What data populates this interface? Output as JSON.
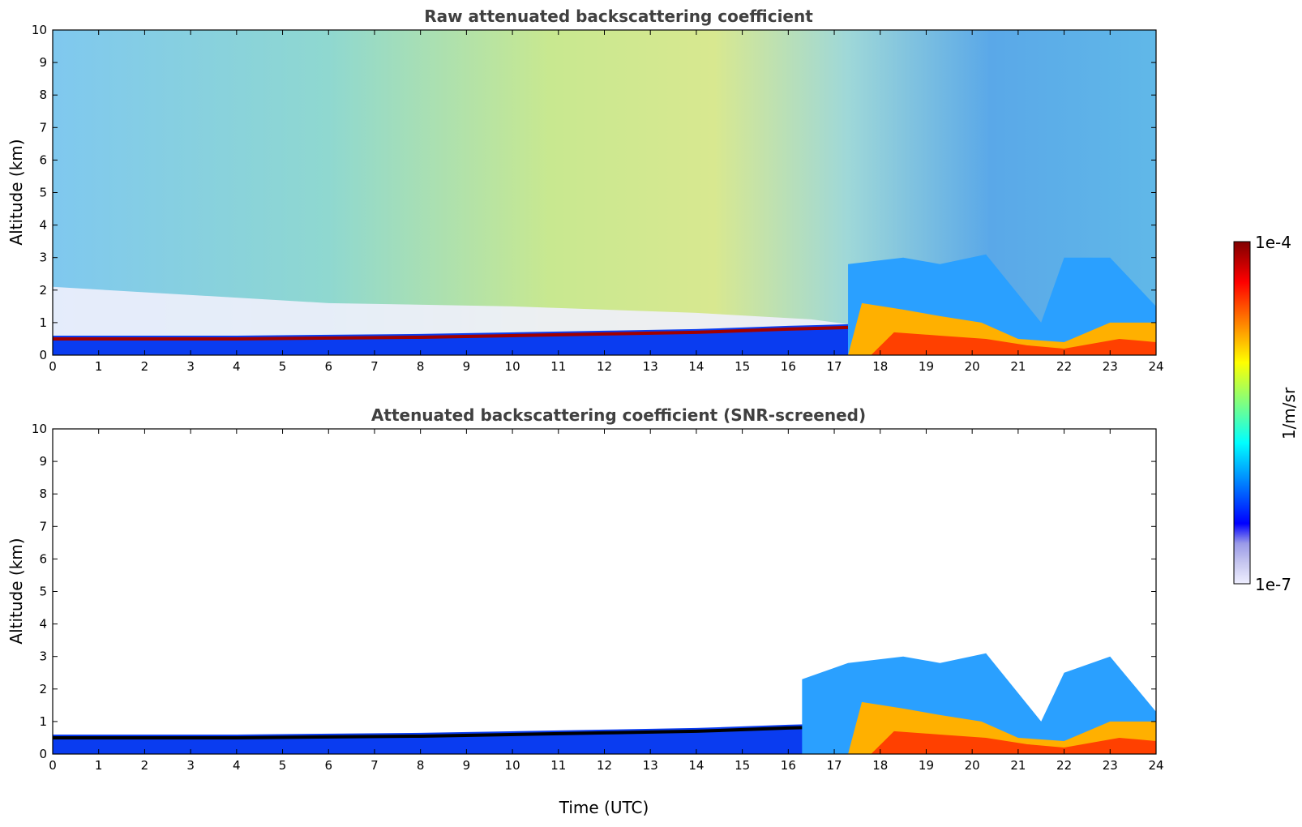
{
  "colors": {
    "jet": [
      "#eeeeff",
      "#c8c8f0",
      "#9a9ae8",
      "#0000ff",
      "#0040ff",
      "#0080ff",
      "#00bfff",
      "#00ffff",
      "#40ffbf",
      "#80ff80",
      "#bfff40",
      "#ffff00",
      "#ffbf00",
      "#ff8000",
      "#ff4000",
      "#ff0000",
      "#bf0000",
      "#800000"
    ],
    "cloud_core": "#000000"
  },
  "colorbar": {
    "min_label": "1e-7",
    "max_label": "1e-4",
    "unit_label": "1/m/sr",
    "scale": "log",
    "range": [
      1e-07,
      0.0001
    ]
  },
  "chart_data": [
    {
      "type": "heatmap",
      "title": "Raw attenuated backscattering coefficient",
      "xlabel": "",
      "ylabel": "Altitude (km)",
      "xlim": [
        0,
        24
      ],
      "ylim": [
        0,
        10
      ],
      "xticks": [
        "0",
        "1",
        "2",
        "3",
        "4",
        "5",
        "6",
        "7",
        "8",
        "9",
        "10",
        "11",
        "12",
        "13",
        "14",
        "15",
        "16",
        "17",
        "18",
        "19",
        "20",
        "21",
        "22",
        "23",
        "24"
      ],
      "yticks": [
        "0",
        "1",
        "2",
        "3",
        "4",
        "5",
        "6",
        "7",
        "8",
        "9",
        "10"
      ],
      "grid": false,
      "boundary_layer_top_km": [
        [
          0,
          0.6
        ],
        [
          4,
          0.6
        ],
        [
          8,
          0.65
        ],
        [
          12,
          0.75
        ],
        [
          14,
          0.8
        ],
        [
          16,
          0.9
        ],
        [
          17.3,
          0.95
        ]
      ],
      "cloud_layer_top_km": [
        [
          17.3,
          2.8
        ],
        [
          18.5,
          3.0
        ],
        [
          19.3,
          2.8
        ],
        [
          20.3,
          3.1
        ],
        [
          21.5,
          1.0
        ],
        [
          22,
          3.0
        ],
        [
          23,
          3.0
        ],
        [
          24,
          1.5
        ]
      ]
    },
    {
      "type": "heatmap",
      "title": "Attenuated backscattering coefficient (SNR-screened)",
      "xlabel": "Time (UTC)",
      "ylabel": "Altitude (km)",
      "xlim": [
        0,
        24
      ],
      "ylim": [
        0,
        10
      ],
      "xticks": [
        "0",
        "1",
        "2",
        "3",
        "4",
        "5",
        "6",
        "7",
        "8",
        "9",
        "10",
        "11",
        "12",
        "13",
        "14",
        "15",
        "16",
        "17",
        "18",
        "19",
        "20",
        "21",
        "22",
        "23",
        "24"
      ],
      "yticks": [
        "0",
        "1",
        "2",
        "3",
        "4",
        "5",
        "6",
        "7",
        "8",
        "9",
        "10"
      ],
      "grid": false,
      "boundary_layer_top_km": [
        [
          0,
          0.6
        ],
        [
          4,
          0.6
        ],
        [
          8,
          0.65
        ],
        [
          12,
          0.75
        ],
        [
          14,
          0.8
        ],
        [
          16,
          0.9
        ],
        [
          17.3,
          0.95
        ]
      ],
      "cloud_layer_top_km": [
        [
          16.3,
          2.3
        ],
        [
          17.3,
          2.8
        ],
        [
          18.5,
          3.0
        ],
        [
          19.3,
          2.8
        ],
        [
          20.3,
          3.1
        ],
        [
          21.5,
          1.0
        ],
        [
          22,
          2.5
        ],
        [
          23,
          3.0
        ],
        [
          24,
          1.3
        ]
      ]
    }
  ]
}
